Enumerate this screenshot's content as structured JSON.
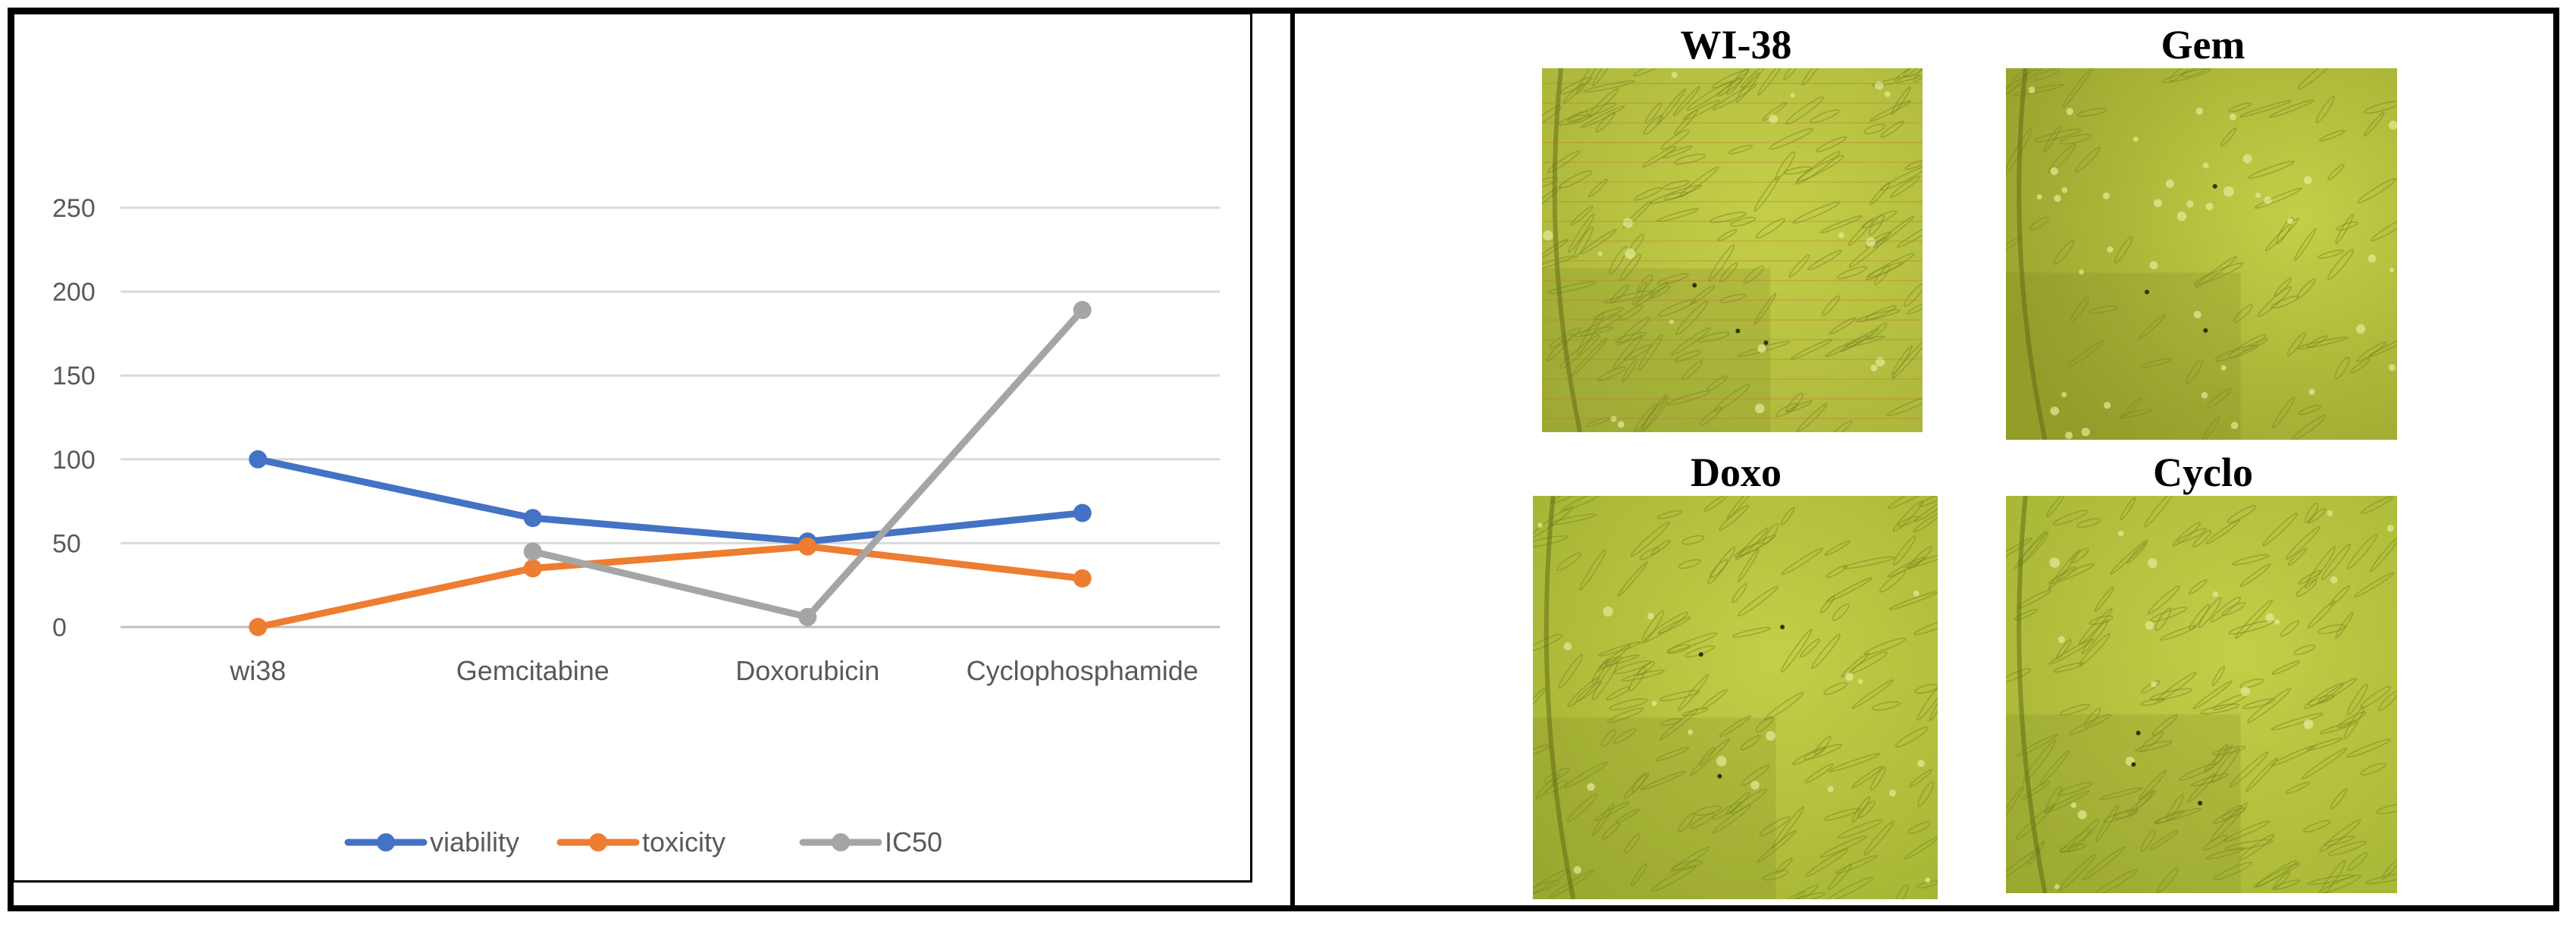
{
  "chart_data": {
    "type": "line",
    "categories": [
      "wi38",
      "Gemcitabine",
      "Doxorubicin",
      "Cyclophosphamide"
    ],
    "ylim": [
      0,
      250
    ],
    "yticks": [
      "0",
      "50",
      "100",
      "150",
      "200",
      "250"
    ],
    "grid": true,
    "legend_position": "bottom",
    "series": [
      {
        "name": "viability",
        "color": "#4472C4",
        "values": [
          100,
          65,
          51,
          68
        ]
      },
      {
        "name": "toxicity",
        "color": "#ED7D31",
        "values": [
          0,
          35,
          48,
          29
        ]
      },
      {
        "name": "IC50",
        "color": "#A5A5A5",
        "values": [
          null,
          45,
          6,
          189
        ]
      }
    ]
  },
  "images": {
    "panels": [
      {
        "key": "wi38",
        "title": "WI-38",
        "tint": "#a9b43a",
        "variant": "lined"
      },
      {
        "key": "gem",
        "title": "Gem",
        "tint": "#9aa52e",
        "variant": "diffuse"
      },
      {
        "key": "doxo",
        "title": "Doxo",
        "tint": "#a3b233",
        "variant": "dense"
      },
      {
        "key": "cyclo",
        "title": "Cyclo",
        "tint": "#a5b435",
        "variant": "dense"
      }
    ]
  }
}
